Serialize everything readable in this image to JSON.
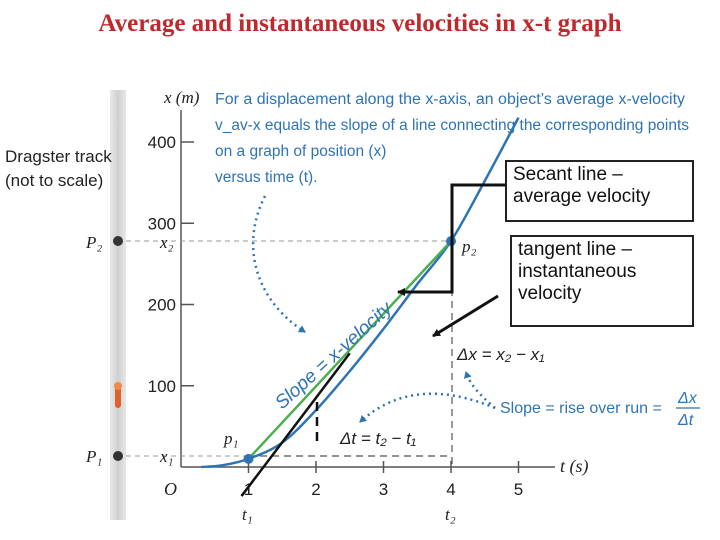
{
  "title": "Average and instantaneous velocities in x-t graph",
  "side_label": {
    "line1": "Dragster track",
    "line2": "(not to scale)"
  },
  "description": {
    "line1": "For a displacement along the x-axis, an object’s average x-velocity",
    "line2": "v_av-x equals the slope of a line connecting the corresponding points",
    "line3": "on a graph of position (x)",
    "line4": "versus time (t)."
  },
  "callouts": {
    "secant": {
      "line1": "Secant line –",
      "line2": "average velocity"
    },
    "tangent": {
      "line1": "tangent line –",
      "line2": "instantaneous",
      "line3": "velocity"
    }
  },
  "annotations": {
    "slope_label": "Slope = x-velocity",
    "delta_x": "Δx = x₂ − x₁",
    "delta_t": "Δt = t₂ − t₁",
    "rise_over_run": "Slope = rise over run =",
    "frac_num": "Δx",
    "frac_den": "Δt",
    "origin": "O",
    "p1": "p₁",
    "p2": "p₂",
    "P1": "P₁",
    "P2": "P₂",
    "x1": "x₁",
    "x2": "x₂",
    "t1": "t₁",
    "t2": "t₂"
  },
  "colors": {
    "title": "#c0282d",
    "curve": "#2e74b5",
    "secant": "#4caf50",
    "text_blue": "#2e74b5",
    "dots": "#2e74b5"
  },
  "chart_data": {
    "type": "line",
    "xlabel": "t (s)",
    "ylabel": "x (m)",
    "xlim": [
      0,
      5.5
    ],
    "ylim": [
      0,
      420
    ],
    "xticks": [
      1,
      2,
      3,
      4,
      5
    ],
    "yticks": [
      100,
      200,
      300,
      400
    ],
    "grid": false,
    "series": [
      {
        "style": "curve",
        "x": [
          0.3,
          0.6,
          1.0,
          1.5,
          2.0,
          2.5,
          3.0,
          3.5,
          4.0,
          4.5,
          5.0
        ],
        "y": [
          0,
          2,
          10,
          30,
          70,
          118,
          170,
          225,
          278,
          352,
          430
        ]
      },
      {
        "style": "secant",
        "x": [
          1.0,
          4.0
        ],
        "y": [
          10,
          278
        ]
      },
      {
        "style": "tangent",
        "x": [
          1.0,
          2.5
        ],
        "y": [
          -5,
          140
        ]
      }
    ],
    "points": [
      {
        "name": "p1",
        "t": 1.0,
        "x": 10
      },
      {
        "name": "p2",
        "t": 4.0,
        "x": 278
      }
    ]
  }
}
